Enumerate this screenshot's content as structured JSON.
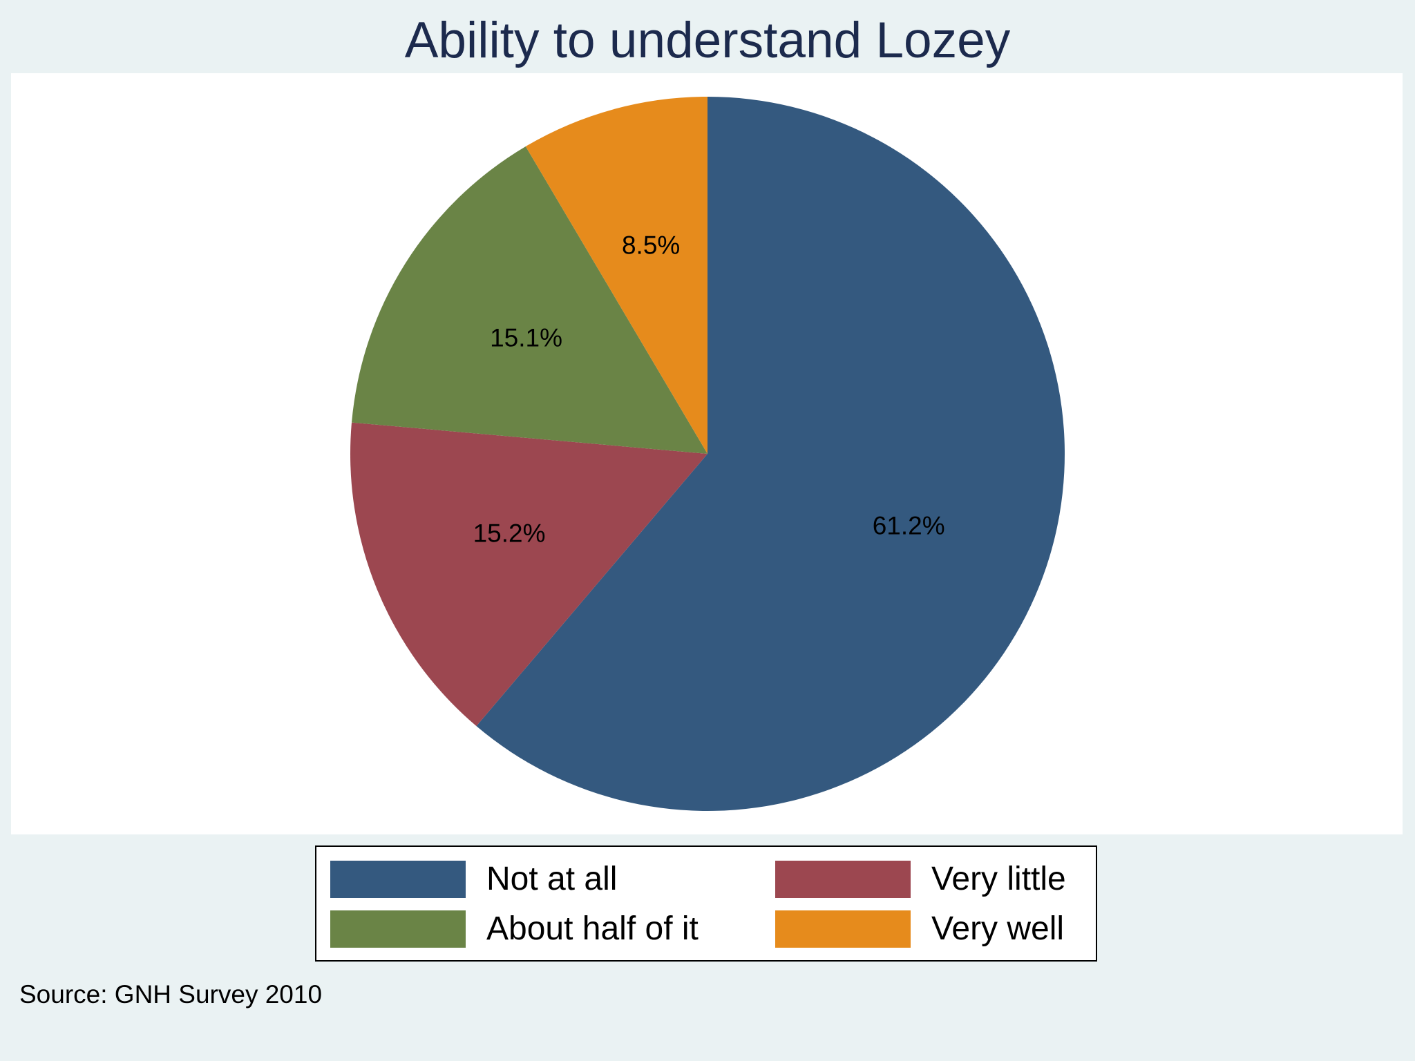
{
  "chart_data": {
    "type": "pie",
    "title": "Ability to understand Lozey",
    "categories": [
      "Not at all",
      "Very little",
      "About half of it",
      "Very well"
    ],
    "values": [
      61.2,
      15.2,
      15.1,
      8.5
    ],
    "value_labels": [
      "61.2%",
      "15.2%",
      "15.1%",
      "8.5%"
    ],
    "colors": [
      "#34597f",
      "#9c4750",
      "#6a8446",
      "#e68b1c"
    ],
    "start_angle_deg": 0,
    "direction": "clockwise",
    "legend": {
      "placement": "bottom",
      "columns": 2,
      "order": [
        "Not at all",
        "Very little",
        "About half of it",
        "Very well"
      ]
    },
    "source": "Source: GNH Survey 2010"
  }
}
